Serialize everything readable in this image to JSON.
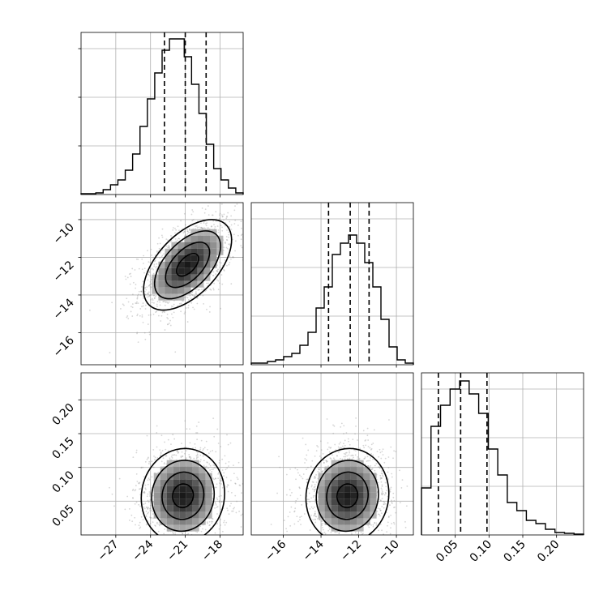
{
  "chart_data": {
    "type": "corner",
    "parameters": [
      {
        "range": [
          -30,
          -16
        ],
        "ticks": [
          -27,
          -24,
          -21,
          -18
        ],
        "tick_labels": [
          "−27",
          "−24",
          "−21",
          "−18"
        ],
        "quantiles": [
          -22.8,
          -21.0,
          -19.2
        ],
        "histogram": [
          0.005,
          0.005,
          0.01,
          0.03,
          0.06,
          0.09,
          0.15,
          0.25,
          0.42,
          0.59,
          0.75,
          0.89,
          0.96,
          0.96,
          0.85,
          0.68,
          0.5,
          0.31,
          0.16,
          0.09,
          0.04,
          0.01
        ]
      },
      {
        "range": [
          -17.7,
          -9.1
        ],
        "ticks": [
          -16,
          -14,
          -12,
          -10
        ],
        "tick_labels": [
          "−16",
          "−14",
          "−12",
          "−10"
        ],
        "quantiles": [
          -13.6,
          -12.45,
          -11.45
        ],
        "histogram": [
          0.01,
          0.01,
          0.02,
          0.03,
          0.05,
          0.07,
          0.12,
          0.2,
          0.35,
          0.48,
          0.68,
          0.75,
          0.8,
          0.75,
          0.63,
          0.48,
          0.28,
          0.11,
          0.03,
          0.01
        ]
      },
      {
        "range": [
          0.0,
          0.24
        ],
        "ticks": [
          0.05,
          0.1,
          0.15,
          0.2
        ],
        "tick_labels": [
          "0.05",
          "0.10",
          "0.15",
          "0.20"
        ],
        "quantiles": [
          0.025,
          0.058,
          0.097
        ],
        "histogram": [
          0.29,
          0.67,
          0.8,
          0.9,
          0.95,
          0.87,
          0.75,
          0.53,
          0.37,
          0.2,
          0.15,
          0.09,
          0.07,
          0.035,
          0.015,
          0.01,
          0.005
        ]
      }
    ],
    "pairs": [
      {
        "x": 0,
        "y": 1,
        "center": [
          -20.8,
          -12.4
        ],
        "sd": [
          1.9,
          1.2
        ],
        "rho": 0.55,
        "contour_levels_sigma": [
          0.5,
          1.0,
          1.5,
          2.0
        ]
      },
      {
        "x": 0,
        "y": 2,
        "center": [
          -21.2,
          0.058
        ],
        "sd": [
          1.8,
          0.035
        ],
        "rho": 0.05,
        "contour_levels_sigma": [
          0.5,
          1.0,
          1.5,
          2.0
        ]
      },
      {
        "x": 1,
        "y": 2,
        "center": [
          -12.6,
          0.058
        ],
        "sd": [
          1.1,
          0.035
        ],
        "rho": 0.05,
        "contour_levels_sigma": [
          0.5,
          1.0,
          1.5,
          2.0
        ]
      }
    ],
    "grid": true
  }
}
